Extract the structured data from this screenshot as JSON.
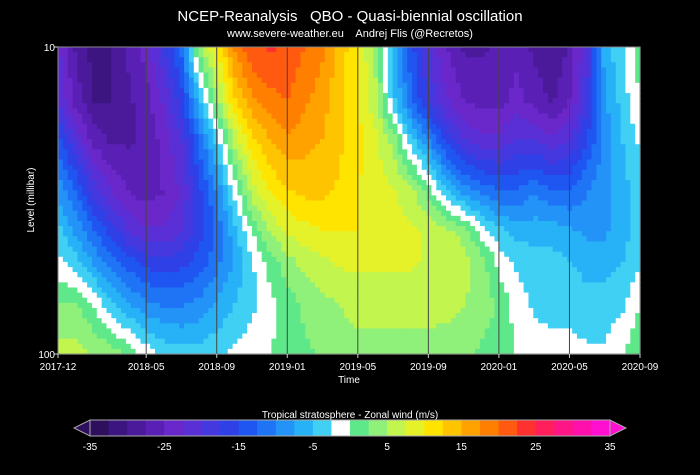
{
  "header": {
    "title": "NCEP-Reanalysis   QBO - Quasi-biennial oscillation",
    "subtitle": "www.severe-weather.eu    Andrej Flis (@Recretos)"
  },
  "chart_data": {
    "type": "heatmap",
    "xlabel": "Time",
    "ylabel": "Level (millibar)",
    "x_ticks": [
      "2017-12",
      "2018-05",
      "2018-09",
      "2019-01",
      "2019-05",
      "2019-09",
      "2020-01",
      "2020-05",
      "2020-09"
    ],
    "y_ticks": [
      "10",
      "100"
    ],
    "y_scale": "log",
    "y_range_mb": [
      10,
      100
    ],
    "x_range": [
      "2017-12",
      "2020-09"
    ],
    "colorbar": {
      "title": "Tropical stratosphere - Zonal wind (m/s)",
      "min": -35,
      "max": 35,
      "step": 2.5,
      "tick_labels": [
        "-35",
        "-25",
        "-15",
        "-5",
        "5",
        "15",
        "25",
        "35"
      ],
      "tick_values": [
        -35,
        -25,
        -15,
        -5,
        5,
        15,
        25,
        35
      ],
      "colors": [
        "#2d0f5e",
        "#3d1580",
        "#4b1a9b",
        "#5a20b6",
        "#6a27c9",
        "#5a2fd6",
        "#4438de",
        "#2e40e6",
        "#1f55f0",
        "#1f74f6",
        "#2393f8",
        "#27b1f7",
        "#3fd0f4",
        "#ffffff",
        "#5ee88a",
        "#8ff07a",
        "#c2f54d",
        "#e5f22a",
        "#ffe400",
        "#ffc400",
        "#ffa200",
        "#ff8000",
        "#ff5a10",
        "#ff3030",
        "#ff1f5a",
        "#ff1686",
        "#ff10ac",
        "#ff10d0"
      ]
    },
    "levels_mb": [
      10,
      15,
      20,
      30,
      40,
      50,
      70,
      100
    ],
    "months": [
      "2017-12",
      "2018-01",
      "2018-02",
      "2018-03",
      "2018-04",
      "2018-05",
      "2018-06",
      "2018-07",
      "2018-08",
      "2018-09",
      "2018-10",
      "2018-11",
      "2018-12",
      "2019-01",
      "2019-02",
      "2019-03",
      "2019-04",
      "2019-05",
      "2019-06",
      "2019-07",
      "2019-08",
      "2019-09",
      "2019-10",
      "2019-11",
      "2019-12",
      "2020-01",
      "2020-02",
      "2020-03",
      "2020-04",
      "2020-05",
      "2020-06",
      "2020-07",
      "2020-08",
      "2020-09"
    ],
    "u_wind_ms": [
      [
        -22,
        -28,
        -31,
        -30,
        -27,
        -24,
        -18,
        -12,
        4,
        10,
        18,
        22,
        23,
        22,
        20,
        18,
        14,
        10,
        4,
        -6,
        -14,
        -20,
        -25,
        -28,
        -28,
        -27,
        -26,
        -28,
        -30,
        -27,
        -20,
        -6,
        -3,
        2
      ],
      [
        -20,
        -26,
        -30,
        -30,
        -28,
        -26,
        -22,
        -16,
        -6,
        4,
        12,
        17,
        19,
        20,
        18,
        16,
        13,
        10,
        6,
        -4,
        -12,
        -18,
        -22,
        -25,
        -26,
        -26,
        -24,
        -26,
        -28,
        -25,
        -18,
        -8,
        -4,
        0
      ],
      [
        -14,
        -20,
        -26,
        -28,
        -28,
        -27,
        -24,
        -20,
        -12,
        -4,
        6,
        12,
        15,
        17,
        16,
        15,
        13,
        11,
        8,
        4,
        -4,
        -10,
        -16,
        -20,
        -22,
        -22,
        -20,
        -20,
        -22,
        -20,
        -15,
        -9,
        -5,
        -2
      ],
      [
        -8,
        -12,
        -18,
        -22,
        -25,
        -26,
        -25,
        -22,
        -16,
        -10,
        -2,
        6,
        10,
        12,
        13,
        13,
        12,
        10,
        9,
        8,
        6,
        2,
        -4,
        -8,
        -10,
        -12,
        -12,
        -10,
        -12,
        -12,
        -10,
        -8,
        -6,
        -4
      ],
      [
        -4,
        -8,
        -12,
        -16,
        -20,
        -22,
        -22,
        -20,
        -16,
        -12,
        -6,
        0,
        5,
        8,
        9,
        10,
        10,
        10,
        9,
        8,
        8,
        7,
        6,
        4,
        -1,
        -4,
        -6,
        -6,
        -6,
        -7,
        -8,
        -8,
        -6,
        -4
      ],
      [
        -2,
        -4,
        -8,
        -11,
        -14,
        -16,
        -17,
        -16,
        -14,
        -11,
        -7,
        -3,
        1,
        4,
        6,
        7,
        8,
        8,
        8,
        8,
        8,
        7,
        7,
        6,
        4,
        -1,
        -3,
        -4,
        -4,
        -5,
        -6,
        -6,
        -5,
        -3
      ],
      [
        3,
        3,
        0,
        -4,
        -7,
        -9,
        -10,
        -10,
        -9,
        -7,
        -5,
        -3,
        -1,
        1,
        3,
        4,
        5,
        6,
        6,
        6,
        6,
        6,
        6,
        5,
        4,
        2,
        -1,
        -3,
        -3,
        -3,
        -4,
        -4,
        -3,
        0
      ],
      [
        6,
        6,
        5,
        4,
        2,
        -1,
        -3,
        -4,
        -4,
        -3,
        -2,
        -1,
        0,
        1,
        2,
        3,
        4,
        4,
        4,
        4,
        4,
        4,
        3,
        3,
        2,
        1,
        0,
        -1,
        -2,
        -2,
        -2,
        -2,
        0,
        2
      ]
    ]
  }
}
